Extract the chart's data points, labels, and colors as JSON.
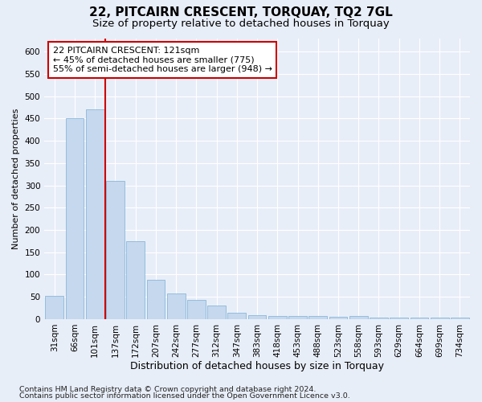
{
  "title1": "22, PITCAIRN CRESCENT, TORQUAY, TQ2 7GL",
  "title2": "Size of property relative to detached houses in Torquay",
  "xlabel": "Distribution of detached houses by size in Torquay",
  "ylabel": "Number of detached properties",
  "categories": [
    "31sqm",
    "66sqm",
    "101sqm",
    "137sqm",
    "172sqm",
    "207sqm",
    "242sqm",
    "277sqm",
    "312sqm",
    "347sqm",
    "383sqm",
    "418sqm",
    "453sqm",
    "488sqm",
    "523sqm",
    "558sqm",
    "593sqm",
    "629sqm",
    "664sqm",
    "699sqm",
    "734sqm"
  ],
  "values": [
    53,
    450,
    470,
    310,
    175,
    88,
    57,
    43,
    30,
    15,
    9,
    8,
    8,
    7,
    6,
    8,
    3,
    3,
    3,
    3,
    3
  ],
  "bar_color": "#c5d8ee",
  "bar_edge_color": "#7aafd4",
  "annotation_line1": "22 PITCAIRN CRESCENT: 121sqm",
  "annotation_line2": "← 45% of detached houses are smaller (775)",
  "annotation_line3": "55% of semi-detached houses are larger (948) →",
  "annotation_box_color": "#ffffff",
  "annotation_box_edge": "#cc0000",
  "vline_color": "#cc0000",
  "vline_x_index": 2,
  "ylim": [
    0,
    630
  ],
  "yticks": [
    0,
    50,
    100,
    150,
    200,
    250,
    300,
    350,
    400,
    450,
    500,
    550,
    600
  ],
  "footnote1": "Contains HM Land Registry data © Crown copyright and database right 2024.",
  "footnote2": "Contains public sector information licensed under the Open Government Licence v3.0.",
  "bg_color": "#e8eef8",
  "plot_bg_color": "#e8eef8",
  "grid_color": "#ffffff",
  "title1_fontsize": 11,
  "title2_fontsize": 9.5,
  "xlabel_fontsize": 9,
  "ylabel_fontsize": 8,
  "tick_fontsize": 7.5,
  "annot_fontsize": 8,
  "footnote_fontsize": 6.8
}
